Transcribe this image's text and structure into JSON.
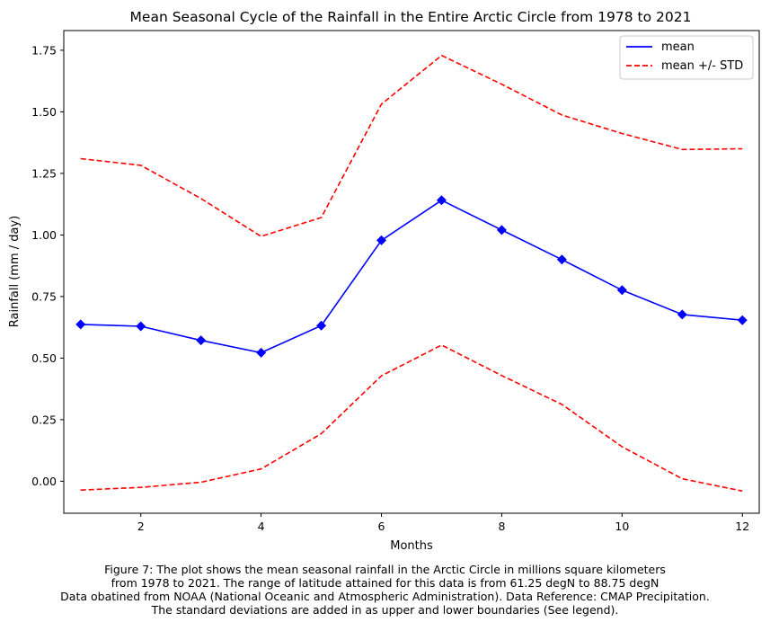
{
  "chart_data": {
    "type": "line",
    "title": "Mean Seasonal Cycle of the Rainfall in the Entire Arctic Circle from 1978 to 2021",
    "xlabel": "Months",
    "ylabel": "Rainfall (mm / day)",
    "xlim": [
      0.72,
      12.28
    ],
    "ylim": [
      -0.13,
      1.83
    ],
    "xticks": [
      2,
      4,
      6,
      8,
      10,
      12
    ],
    "yticks": [
      0.0,
      0.25,
      0.5,
      0.75,
      1.0,
      1.25,
      1.5,
      1.75
    ],
    "ytick_labels": [
      "0.00",
      "0.25",
      "0.50",
      "0.75",
      "1.00",
      "1.25",
      "1.50",
      "1.75"
    ],
    "grid": false,
    "legend_position": "top-right",
    "x": [
      1,
      2,
      3,
      4,
      5,
      6,
      7,
      8,
      9,
      10,
      11,
      12
    ],
    "series": [
      {
        "name": "mean",
        "color": "#0000ff",
        "style": "solid",
        "marker": "diamond",
        "values": [
          0.637,
          0.629,
          0.572,
          0.522,
          0.632,
          0.978,
          1.141,
          1.02,
          0.9,
          0.776,
          0.677,
          0.654
        ]
      },
      {
        "name": "mean +/- STD",
        "color": "#ff0000",
        "style": "dashed",
        "marker": "none",
        "values": [
          1.31,
          1.283,
          1.148,
          0.994,
          1.071,
          1.531,
          1.729,
          1.612,
          1.487,
          1.412,
          1.347,
          1.35
        ]
      },
      {
        "name": "",
        "color": "#ff0000",
        "style": "dashed",
        "marker": "none",
        "values": [
          -0.036,
          -0.025,
          -0.004,
          0.05,
          0.193,
          0.428,
          0.553,
          0.429,
          0.312,
          0.14,
          0.01,
          -0.04
        ]
      }
    ]
  },
  "caption": {
    "line1": "Figure 7: The plot shows the mean seasonal rainfall in the Arctic Circle in millions square kilometers",
    "line2": "from 1978 to 2021. The range of latitude attained for this data is from 61.25 degN to 88.75 degN",
    "line3": "Data obatined from NOAA (National Oceanic and Atmospheric Administration). Data Reference: CMAP Precipitation.",
    "line4": "The standard deviations are added in as upper and lower boundaries (See legend)."
  }
}
